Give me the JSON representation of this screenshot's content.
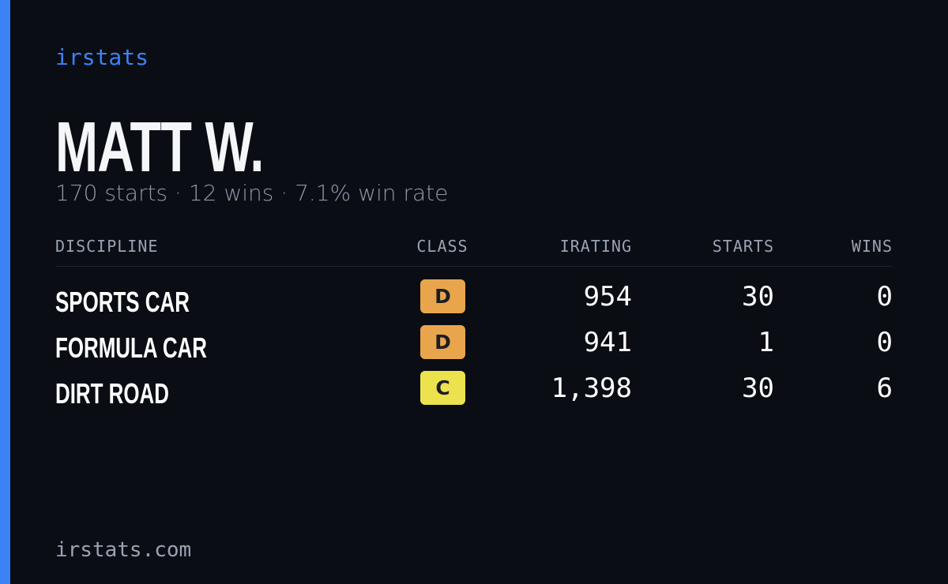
{
  "brand": "irstats",
  "name": "MATT W.",
  "summary": "170 starts · 12 wins · 7.1% win rate",
  "table": {
    "headers": [
      "DISCIPLINE",
      "CLASS",
      "IRATING",
      "STARTS",
      "WINS"
    ],
    "rows": [
      {
        "discipline": "SPORTS CAR",
        "class": "D",
        "class_color": "#e9a54c",
        "irating": "954",
        "starts": "30",
        "wins": "0"
      },
      {
        "discipline": "FORMULA CAR",
        "class": "D",
        "class_color": "#e9a54c",
        "irating": "941",
        "starts": "1",
        "wins": "0"
      },
      {
        "discipline": "DIRT ROAD",
        "class": "C",
        "class_color": "#ece24e",
        "irating": "1,398",
        "starts": "30",
        "wins": "6"
      }
    ]
  },
  "footer": "irstats.com"
}
